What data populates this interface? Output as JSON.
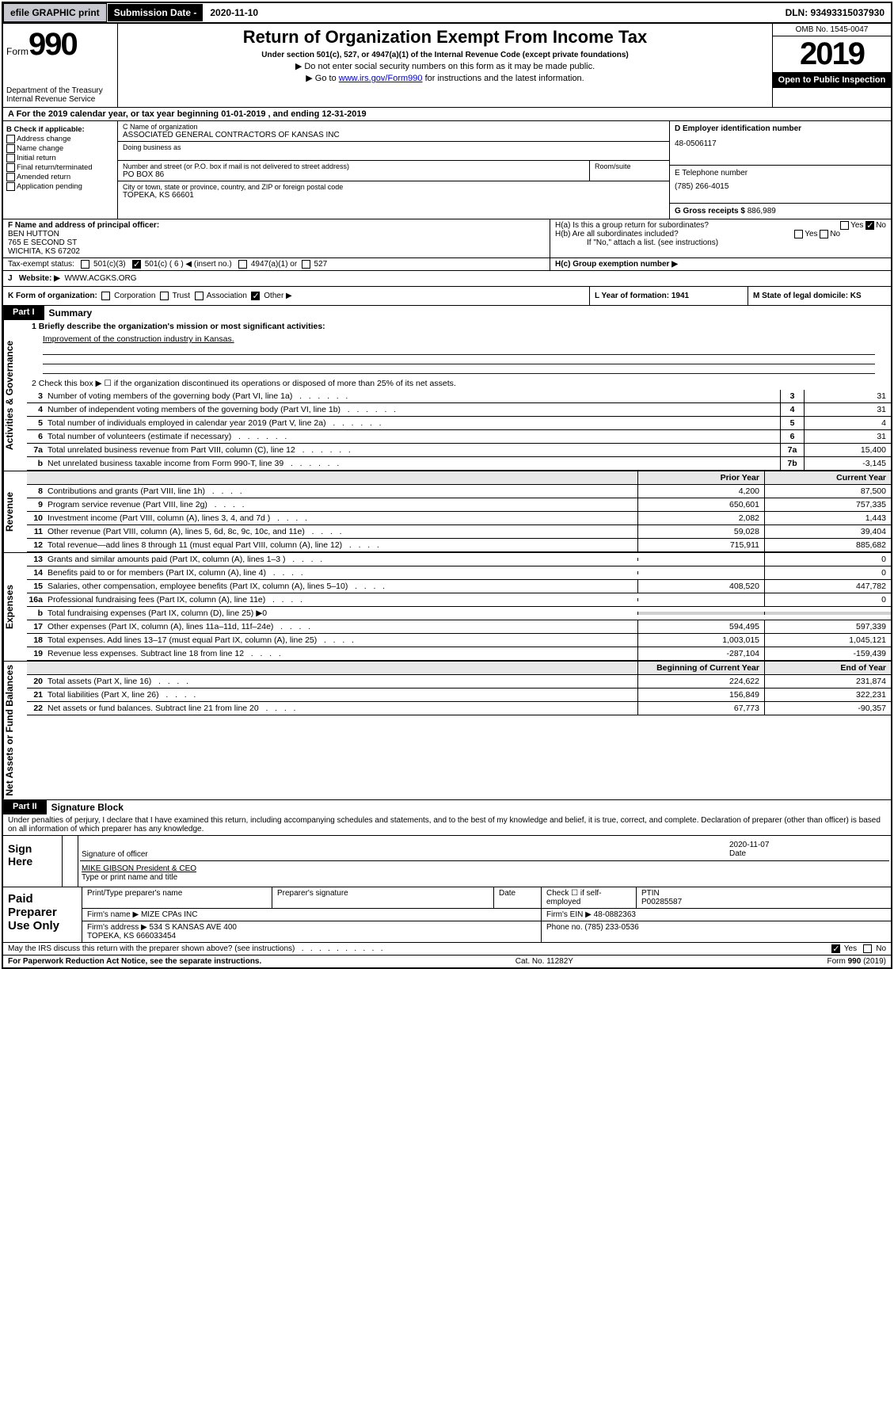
{
  "topbar": {
    "efile": "efile GRAPHIC print",
    "sub_date_lbl": "Submission Date - ",
    "sub_date_val": "2020-11-10",
    "dln": "DLN: 93493315037930"
  },
  "header": {
    "form_prefix": "Form",
    "form_num": "990",
    "dept": "Department of the Treasury\nInternal Revenue Service",
    "title": "Return of Organization Exempt From Income Tax",
    "subtitle": "Under section 501(c), 527, or 4947(a)(1) of the Internal Revenue Code (except private foundations)",
    "note1": "▶ Do not enter social security numbers on this form as it may be made public.",
    "note2_pre": "▶ Go to ",
    "note2_link": "www.irs.gov/Form990",
    "note2_post": " for instructions and the latest information.",
    "omb": "OMB No. 1545-0047",
    "year": "2019",
    "open": "Open to Public Inspection"
  },
  "row_a": "A For the 2019 calendar year, or tax year beginning 01-01-2019    , and ending 12-31-2019",
  "col_b": {
    "title": "B Check if applicable:",
    "items": [
      "Address change",
      "Name change",
      "Initial return",
      "Final return/terminated",
      "Amended return",
      "Application pending"
    ]
  },
  "entity": {
    "name_lbl": "C Name of organization",
    "name": "ASSOCIATED GENERAL CONTRACTORS OF KANSAS INC",
    "dba_lbl": "Doing business as",
    "addr_lbl": "Number and street (or P.O. box if mail is not delivered to street address)",
    "addr": "PO BOX 86",
    "room_lbl": "Room/suite",
    "city_lbl": "City or town, state or province, country, and ZIP or foreign postal code",
    "city": "TOPEKA, KS   66601",
    "ein_lbl": "D Employer identification number",
    "ein": "48-0506117",
    "phone_lbl": "E Telephone number",
    "phone": "(785) 266-4015",
    "gross_lbl": "G Gross receipts $ ",
    "gross": "886,989"
  },
  "officer": {
    "lbl": "F  Name and address of principal officer:",
    "name": "BEN HUTTON",
    "addr": "765 E SECOND ST\nWICHITA, KS   67202"
  },
  "h": {
    "a_lbl": "H(a)  Is this a group return for subordinates?",
    "b_lbl": "H(b)  Are all subordinates included?",
    "b_note": "If \"No,\" attach a list. (see instructions)",
    "c_lbl": "H(c)  Group exemption number ▶"
  },
  "tax_status": "Tax-exempt status:",
  "status_opts": [
    "501(c)(3)",
    "501(c) ( 6 ) ◀ (insert no.)",
    "4947(a)(1) or",
    "527"
  ],
  "website_lbl": "Website: ▶",
  "website": "WWW.ACGKS.ORG",
  "k_lbl": "K Form of organization:",
  "k_opts": [
    "Corporation",
    "Trust",
    "Association",
    "Other ▶"
  ],
  "l": "L Year of formation: 1941",
  "m": "M State of legal domicile: KS",
  "part1": {
    "hdr": "Part I",
    "title": "Summary",
    "line1_lbl": "1  Briefly describe the organization's mission or most significant activities:",
    "mission": "Improvement of the construction industry in Kansas.",
    "line2": "2   Check this box ▶ ☐  if the organization discontinued its operations or disposed of more than 25% of its net assets.",
    "sections": [
      {
        "sidebar": "Activities & Governance",
        "lines": [
          {
            "n": "3",
            "t": "Number of voting members of the governing body (Part VI, line 1a)",
            "b": "3",
            "v": "31"
          },
          {
            "n": "4",
            "t": "Number of independent voting members of the governing body (Part VI, line 1b)",
            "b": "4",
            "v": "31"
          },
          {
            "n": "5",
            "t": "Total number of individuals employed in calendar year 2019 (Part V, line 2a)",
            "b": "5",
            "v": "4"
          },
          {
            "n": "6",
            "t": "Total number of volunteers (estimate if necessary)",
            "b": "6",
            "v": "31"
          },
          {
            "n": "7a",
            "t": "Total unrelated business revenue from Part VIII, column (C), line 12",
            "b": "7a",
            "v": "15,400"
          },
          {
            "n": "b",
            "t": "Net unrelated business taxable income from Form 990-T, line 39",
            "b": "7b",
            "v": "-3,145"
          }
        ]
      },
      {
        "sidebar": "Revenue",
        "hdr": [
          "Prior Year",
          "Current Year"
        ],
        "lines": [
          {
            "n": "8",
            "t": "Contributions and grants (Part VIII, line 1h)",
            "p": "4,200",
            "c": "87,500"
          },
          {
            "n": "9",
            "t": "Program service revenue (Part VIII, line 2g)",
            "p": "650,601",
            "c": "757,335"
          },
          {
            "n": "10",
            "t": "Investment income (Part VIII, column (A), lines 3, 4, and 7d )",
            "p": "2,082",
            "c": "1,443"
          },
          {
            "n": "11",
            "t": "Other revenue (Part VIII, column (A), lines 5, 6d, 8c, 9c, 10c, and 11e)",
            "p": "59,028",
            "c": "39,404"
          },
          {
            "n": "12",
            "t": "Total revenue—add lines 8 through 11 (must equal Part VIII, column (A), line 12)",
            "p": "715,911",
            "c": "885,682"
          }
        ]
      },
      {
        "sidebar": "Expenses",
        "lines": [
          {
            "n": "13",
            "t": "Grants and similar amounts paid (Part IX, column (A), lines 1–3 )",
            "p": "",
            "c": "0"
          },
          {
            "n": "14",
            "t": "Benefits paid to or for members (Part IX, column (A), line 4)",
            "p": "",
            "c": "0"
          },
          {
            "n": "15",
            "t": "Salaries, other compensation, employee benefits (Part IX, column (A), lines 5–10)",
            "p": "408,520",
            "c": "447,782"
          },
          {
            "n": "16a",
            "t": "Professional fundraising fees (Part IX, column (A), line 11e)",
            "p": "",
            "c": "0"
          },
          {
            "n": "b",
            "t": "Total fundraising expenses (Part IX, column (D), line 25) ▶0",
            "p": null,
            "c": null
          },
          {
            "n": "17",
            "t": "Other expenses (Part IX, column (A), lines 11a–11d, 11f–24e)",
            "p": "594,495",
            "c": "597,339"
          },
          {
            "n": "18",
            "t": "Total expenses. Add lines 13–17 (must equal Part IX, column (A), line 25)",
            "p": "1,003,015",
            "c": "1,045,121"
          },
          {
            "n": "19",
            "t": "Revenue less expenses. Subtract line 18 from line 12",
            "p": "-287,104",
            "c": "-159,439"
          }
        ]
      },
      {
        "sidebar": "Net Assets or Fund Balances",
        "hdr": [
          "Beginning of Current Year",
          "End of Year"
        ],
        "lines": [
          {
            "n": "20",
            "t": "Total assets (Part X, line 16)",
            "p": "224,622",
            "c": "231,874"
          },
          {
            "n": "21",
            "t": "Total liabilities (Part X, line 26)",
            "p": "156,849",
            "c": "322,231"
          },
          {
            "n": "22",
            "t": "Net assets or fund balances. Subtract line 21 from line 20",
            "p": "67,773",
            "c": "-90,357"
          }
        ]
      }
    ]
  },
  "part2": {
    "hdr": "Part II",
    "title": "Signature Block",
    "decl": "Under penalties of perjury, I declare that I have examined this return, including accompanying schedules and statements, and to the best of my knowledge and belief, it is true, correct, and complete. Declaration of preparer (other than officer) is based on all information of which preparer has any knowledge.",
    "sign_lbl": "Sign Here",
    "sig_officer": "Signature of officer",
    "sig_date": "2020-11-07",
    "sig_date_lbl": "Date",
    "sig_name": "MIKE GIBSON  President & CEO",
    "sig_name_lbl": "Type or print name and title"
  },
  "prep": {
    "lbl": "Paid Preparer Use Only",
    "cols": [
      "Print/Type preparer's name",
      "Preparer's signature",
      "Date"
    ],
    "check_lbl": "Check ☐ if self-employed",
    "ptin_lbl": "PTIN",
    "ptin": "P00285587",
    "firm_name_lbl": "Firm's name    ▶ ",
    "firm_name": "MIZE CPAs INC",
    "firm_ein_lbl": "Firm's EIN ▶ ",
    "firm_ein": "48-0882363",
    "firm_addr_lbl": "Firm's address ▶ ",
    "firm_addr": "534 S KANSAS AVE 400\nTOPEKA, KS   666033454",
    "firm_phone_lbl": "Phone no. ",
    "firm_phone": "(785) 233-0536"
  },
  "discuss": "May the IRS discuss this return with the preparer shown above? (see instructions)",
  "footer": {
    "pra": "For Paperwork Reduction Act Notice, see the separate instructions.",
    "cat": "Cat. No. 11282Y",
    "form": "Form 990 (2019)"
  }
}
